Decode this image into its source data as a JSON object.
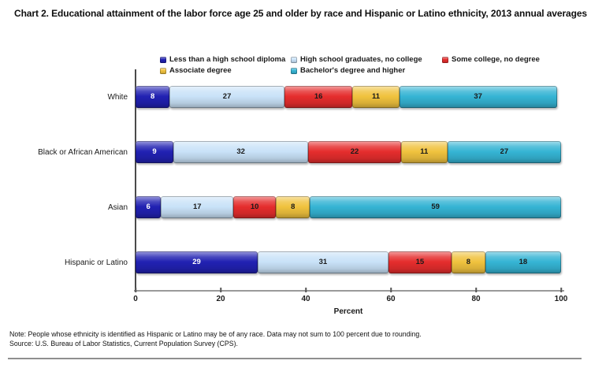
{
  "title": "Chart 2. Educational attainment of the labor force age 25 and older by race and Hispanic or Latino ethnicity, 2013 annual averages",
  "note": "Note: People whose ethnicity is identified as Hispanic or Latino may be of any race. Data may not sum to 100 percent due to rounding.",
  "source": "Source: U.S. Bureau of Labor Statistics, Current Population Survey (CPS).",
  "chart_data": {
    "type": "bar",
    "orientation": "horizontal",
    "stacked": true,
    "categories": [
      "White",
      "Black or African American",
      "Asian",
      "Hispanic or Latino"
    ],
    "series": [
      {
        "name": "Less than a high school diploma",
        "color": "#2121b2",
        "label_color": "#ffffff",
        "values": [
          8,
          9,
          6,
          29
        ]
      },
      {
        "name": "High school graduates, no college",
        "color": "#c9e2f8",
        "label_color": "#1a1a1a",
        "values": [
          27,
          32,
          17,
          31
        ]
      },
      {
        "name": "Some college, no degree",
        "color": "#e52d2d",
        "label_color": "#1a1a1a",
        "values": [
          16,
          22,
          10,
          15
        ]
      },
      {
        "name": "Associate degree",
        "color": "#f0c23e",
        "label_color": "#1a1a1a",
        "values": [
          11,
          11,
          8,
          8
        ]
      },
      {
        "name": "Bachelor's degree and higher",
        "color": "#35b4d4",
        "label_color": "#1a1a1a",
        "values": [
          37,
          27,
          59,
          18
        ]
      }
    ],
    "xlabel": "Percent",
    "xlim": [
      0,
      100
    ],
    "xticks": [
      0,
      20,
      40,
      60,
      80,
      100
    ],
    "grid": false,
    "legend_position": "top"
  }
}
